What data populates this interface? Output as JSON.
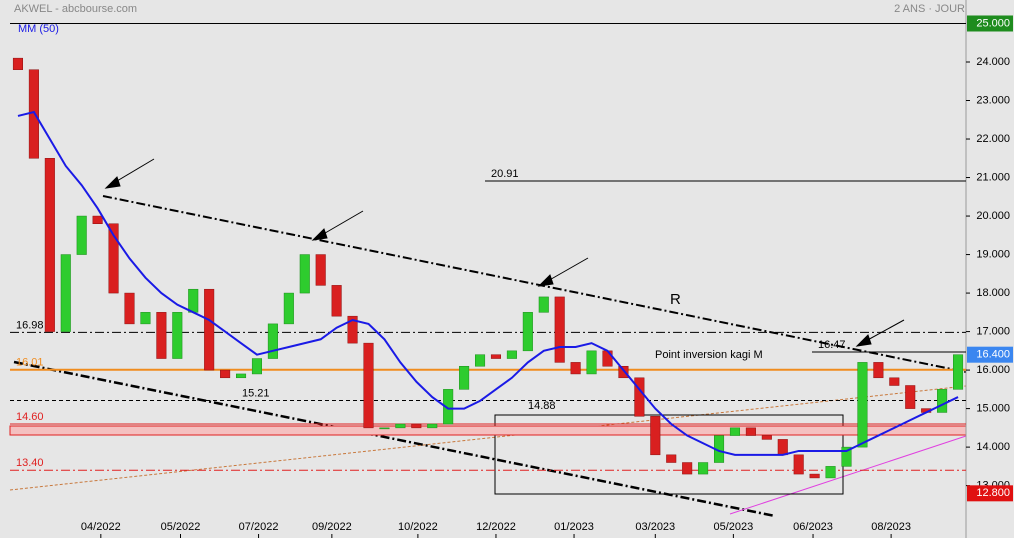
{
  "chart_data": {
    "type": "candlestick",
    "title": "AKWEL - abcbourse.com",
    "subtitle": "2 ANS · JOUR",
    "ma_label": "MM (50)",
    "open": [
      24.1,
      23.8,
      21.5,
      17.0,
      19.0,
      20.0,
      19.8,
      18.0,
      17.2,
      17.5,
      16.3,
      17.5,
      18.1,
      16.0,
      15.8,
      15.9,
      16.3,
      17.2,
      18.0,
      19.0,
      18.2,
      17.4,
      16.7,
      14.5,
      14.5,
      14.6,
      14.5,
      14.6,
      15.5,
      16.1,
      16.4,
      16.3,
      16.5,
      17.5,
      17.9,
      16.2,
      15.9,
      16.5,
      16.1,
      15.8,
      14.8,
      13.8,
      13.6,
      13.3,
      13.6,
      14.3,
      14.5,
      14.3,
      14.2,
      13.8,
      13.3,
      13.2,
      13.5,
      14.0,
      16.2,
      15.8,
      15.6,
      15.0,
      14.9,
      15.5
    ],
    "close": [
      23.8,
      21.5,
      17.0,
      19.0,
      20.0,
      19.8,
      18.0,
      17.2,
      17.5,
      16.3,
      17.5,
      18.1,
      16.0,
      15.8,
      15.9,
      16.3,
      17.2,
      18.0,
      19.0,
      18.2,
      17.4,
      16.7,
      14.5,
      14.5,
      14.6,
      14.5,
      14.6,
      15.5,
      16.1,
      16.4,
      16.3,
      16.5,
      17.5,
      17.9,
      16.2,
      15.9,
      16.5,
      16.1,
      15.8,
      14.8,
      13.8,
      13.6,
      13.3,
      13.6,
      14.3,
      14.5,
      14.3,
      14.2,
      13.8,
      13.3,
      13.2,
      13.5,
      14.0,
      16.2,
      15.8,
      15.6,
      15.0,
      14.9,
      15.5,
      16.4
    ],
    "up_color": "#2ecc2e",
    "down_color": "#d92020",
    "series": [
      {
        "name": "MM (50)",
        "color": "#1a1ae6",
        "values": [
          22.6,
          22.7,
          22.0,
          21.3,
          20.8,
          20.2,
          19.5,
          18.9,
          18.4,
          18.0,
          17.7,
          17.5,
          17.3,
          17.0,
          16.7,
          16.4,
          16.5,
          16.6,
          16.7,
          16.8,
          17.1,
          17.3,
          17.2,
          16.8,
          16.2,
          15.7,
          15.3,
          15.0,
          15.0,
          15.2,
          15.5,
          15.8,
          16.2,
          16.5,
          16.6,
          16.6,
          16.7,
          16.5,
          16.0,
          15.5,
          15.0,
          14.6,
          14.3,
          14.1,
          13.9,
          13.8,
          13.8,
          13.8,
          13.8,
          13.9,
          13.9,
          13.9,
          13.9,
          14.1,
          14.3,
          14.5,
          14.7,
          14.9,
          15.1,
          15.3
        ]
      }
    ],
    "xlim": [
      -0.5,
      59.5
    ],
    "xticks": [
      {
        "value": 5.2,
        "label": "04/2022"
      },
      {
        "value": 10.2,
        "label": "05/2022"
      },
      {
        "value": 15.1,
        "label": "07/2022"
      },
      {
        "value": 19.7,
        "label": "09/2022"
      },
      {
        "value": 25.1,
        "label": "10/2022"
      },
      {
        "value": 30.0,
        "label": "12/2022"
      },
      {
        "value": 34.9,
        "label": "01/2023"
      },
      {
        "value": 40.0,
        "label": "03/2023"
      },
      {
        "value": 44.9,
        "label": "05/2023"
      },
      {
        "value": 49.9,
        "label": "06/2023"
      },
      {
        "value": 54.8,
        "label": "08/2023"
      }
    ],
    "ylim": [
      11.64,
      25.61
    ],
    "yticks": [
      {
        "value": 24,
        "label": "24.000"
      },
      {
        "value": 23,
        "label": "23.000"
      },
      {
        "value": 22,
        "label": "22.000"
      },
      {
        "value": 21,
        "label": "21.000"
      },
      {
        "value": 20,
        "label": "20.000"
      },
      {
        "value": 19,
        "label": "19.000"
      },
      {
        "value": 18,
        "label": "18.000"
      },
      {
        "value": 17,
        "label": "17.000"
      },
      {
        "value": 16,
        "label": "16.000"
      },
      {
        "value": 15,
        "label": "15.000"
      },
      {
        "value": 14,
        "label": "14.000"
      },
      {
        "value": 13,
        "label": "13.000"
      }
    ],
    "price_labels": [
      {
        "value": 25,
        "label": "25.000",
        "color": "#1e8c1e"
      },
      {
        "value": 16.4,
        "label": "16.400",
        "color": "#3a86f0"
      },
      {
        "value": 12.8,
        "label": "12.800",
        "color": "#e01010"
      }
    ],
    "levels": [
      {
        "value": 25,
        "label": "",
        "color": "#000000"
      },
      {
        "value": 20.91,
        "label": "20.91",
        "color": "#000000"
      },
      {
        "value": 16.98,
        "label": "16.98",
        "color": "#000000"
      },
      {
        "value": 16.47,
        "label": "16.47",
        "color": "#000000"
      },
      {
        "value": 16.01,
        "label": "16.01",
        "color": "#f08c1e"
      },
      {
        "value": 15.21,
        "label": "15.21",
        "color": "#000000"
      },
      {
        "value": 14.88,
        "label": "14.88",
        "color": "#000000"
      },
      {
        "value": 14.6,
        "label": "14.60",
        "color": "#e02020"
      },
      {
        "value": 13.4,
        "label": "13.40",
        "color": "#e02020"
      }
    ],
    "annotations": [
      "R",
      "Point inversion kagi M"
    ]
  }
}
